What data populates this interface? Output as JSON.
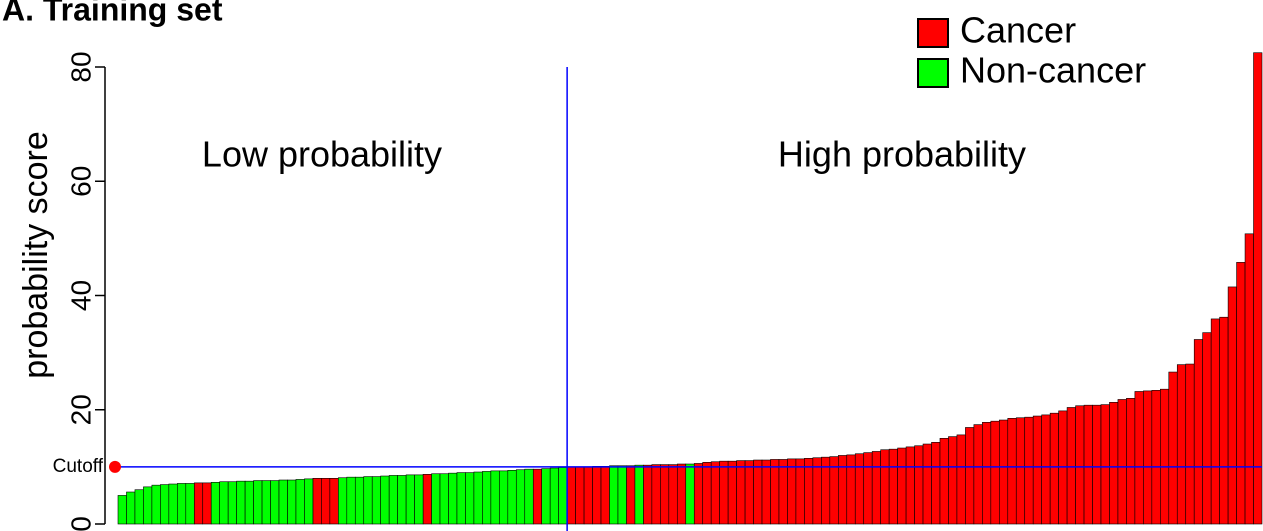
{
  "chart_data": {
    "type": "bar",
    "title": "A. Training set",
    "y_label": "probability score",
    "annotations": [
      "Low probability",
      "High probability"
    ],
    "cutoff": 10,
    "cutoff_label": "Cutoff",
    "cutoff_color": "#0000ff",
    "cutoff_marker_color": "#ff0000",
    "ylim": [
      0,
      80
    ],
    "yticks": [
      0,
      20,
      40,
      60,
      80
    ],
    "legend": "top-right",
    "series": [
      {
        "name": "Cancer",
        "color": "#ff0000",
        "values": [
          null,
          null,
          null,
          null,
          null,
          null,
          null,
          null,
          null,
          7.2,
          7.2,
          null,
          null,
          null,
          null,
          null,
          null,
          null,
          null,
          null,
          null,
          null,
          null,
          8.0,
          8.0,
          8.0,
          null,
          null,
          null,
          null,
          null,
          null,
          null,
          null,
          null,
          null,
          8.7,
          null,
          null,
          null,
          null,
          null,
          null,
          null,
          null,
          null,
          null,
          null,
          null,
          9.6,
          null,
          null,
          null,
          10.0,
          10.0,
          10.0,
          10.1,
          10.1,
          null,
          null,
          10.2,
          null,
          10.3,
          10.4,
          10.4,
          10.4,
          10.5,
          null,
          10.6,
          10.8,
          10.9,
          11.0,
          11.0,
          11.1,
          11.1,
          11.2,
          11.2,
          11.3,
          11.3,
          11.4,
          11.4,
          11.5,
          11.6,
          11.7,
          11.8,
          12.0,
          12.1,
          12.3,
          12.5,
          12.7,
          13.0,
          13.1,
          13.3,
          13.5,
          13.7,
          14.0,
          14.3,
          15.0,
          15.3,
          15.6,
          16.9,
          17.4,
          17.8,
          18.0,
          18.2,
          18.5,
          18.6,
          18.7,
          18.9,
          19.1,
          19.4,
          19.8,
          20.4,
          20.7,
          20.8,
          20.8,
          20.9,
          21.3,
          21.8,
          22.0,
          23.2,
          23.3,
          23.4,
          23.6,
          26.6,
          27.9,
          28.0,
          32.3,
          33.5,
          35.9,
          36.2,
          41.5,
          45.8,
          50.8,
          82.5
        ]
      },
      {
        "name": "Non-cancer",
        "color": "#00ff00",
        "values": [
          5.0,
          5.6,
          6.0,
          6.5,
          6.8,
          6.9,
          7.0,
          7.1,
          7.1,
          null,
          null,
          7.3,
          7.4,
          7.4,
          7.5,
          7.5,
          7.6,
          7.6,
          7.6,
          7.7,
          7.7,
          7.8,
          7.9,
          null,
          null,
          null,
          8.1,
          8.2,
          8.2,
          8.3,
          8.3,
          8.4,
          8.5,
          8.5,
          8.6,
          8.6,
          null,
          8.8,
          8.8,
          8.9,
          9.0,
          9.0,
          9.1,
          9.2,
          9.3,
          9.3,
          9.4,
          9.5,
          9.6,
          null,
          9.7,
          9.8,
          9.9,
          null,
          null,
          null,
          null,
          null,
          10.2,
          10.2,
          null,
          10.3,
          null,
          null,
          null,
          null,
          null,
          10.5,
          null,
          null,
          null,
          null,
          null,
          null,
          null,
          null,
          null,
          null,
          null,
          null,
          null,
          null,
          null,
          null,
          null,
          null,
          null,
          null,
          null,
          null,
          null,
          null,
          null,
          null,
          null,
          null,
          null,
          null,
          null,
          null,
          null,
          null,
          null,
          null,
          null,
          null,
          null,
          null,
          null,
          null,
          null,
          null,
          null,
          null,
          null,
          null,
          null,
          null,
          null,
          null,
          null,
          null,
          null,
          null,
          null,
          null,
          null,
          null,
          null,
          null,
          null,
          null,
          null,
          null,
          null
        ]
      }
    ]
  }
}
